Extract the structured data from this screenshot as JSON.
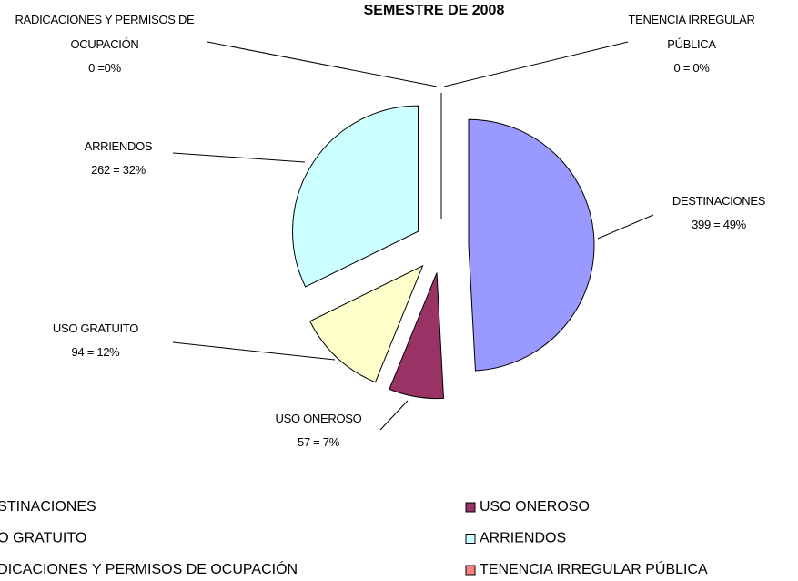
{
  "chart_data": {
    "type": "pie",
    "title": "SEMESTRE DE 2008",
    "categories": [
      "DESTINACIONES",
      "USO ONEROSO",
      "USO GRATUITO",
      "ARRIENDOS",
      "RADICACIONES Y PERMISOS DE OCUPACIÓN",
      "TENENCIA IRREGULAR PÚBLICA"
    ],
    "values": [
      399,
      57,
      94,
      262,
      0,
      0
    ],
    "value_labels": [
      "399 = 49%",
      "57 = 7%",
      "94 = 12%",
      "262 = 32%",
      "0 =0%",
      "0 = 0%"
    ],
    "colors": [
      "#9999ff",
      "#993366",
      "#ffffcc",
      "#ccffff",
      "#660066",
      "#ff8080"
    ],
    "legend": "bottom"
  }
}
